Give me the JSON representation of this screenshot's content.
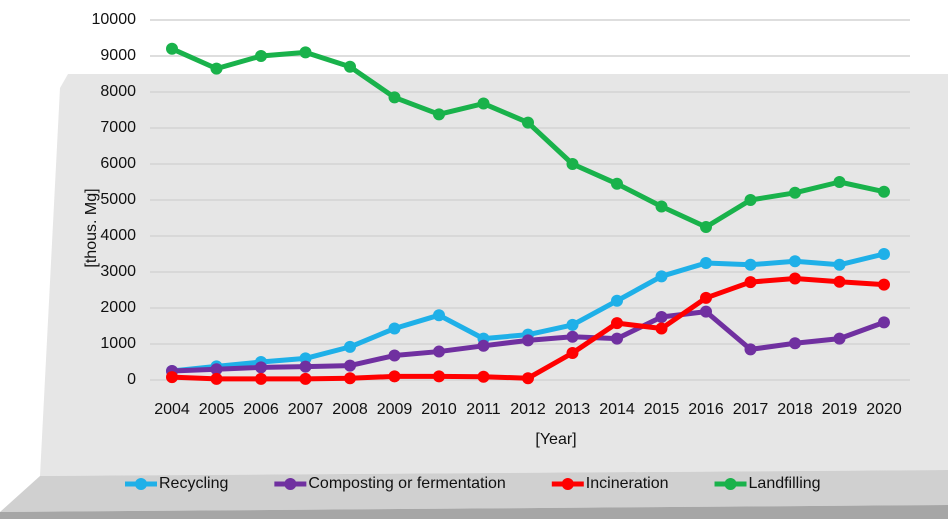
{
  "chart_data": {
    "type": "line",
    "categories": [
      "2004",
      "2005",
      "2006",
      "2007",
      "2008",
      "2009",
      "2010",
      "2011",
      "2012",
      "2013",
      "2014",
      "2015",
      "2016",
      "2017",
      "2018",
      "2019",
      "2020"
    ],
    "x_label": "[Year]",
    "y_label": "[thous. Mg]",
    "ylim": [
      0,
      10000
    ],
    "yticks": [
      0,
      1000,
      2000,
      3000,
      4000,
      5000,
      6000,
      7000,
      8000,
      9000,
      10000
    ],
    "grid": true,
    "legend": "bottom",
    "series": [
      {
        "name": "Recycling",
        "color": "#1fb0e8",
        "values": [
          250,
          380,
          500,
          600,
          920,
          1430,
          1800,
          1150,
          1260,
          1530,
          2200,
          2880,
          3250,
          3200,
          3300,
          3200,
          3500
        ]
      },
      {
        "name": "Composting or fermentation",
        "color": "#7030a0",
        "values": [
          250,
          300,
          350,
          370,
          400,
          680,
          790,
          950,
          1100,
          1200,
          1150,
          1750,
          1900,
          850,
          1020,
          1150,
          1600
        ]
      },
      {
        "name": "Incineration",
        "color": "#ff0000",
        "values": [
          80,
          30,
          30,
          30,
          50,
          100,
          100,
          90,
          50,
          750,
          1580,
          1430,
          2280,
          2720,
          2820,
          2730,
          2650
        ]
      },
      {
        "name": "Landfilling",
        "color": "#19b24b",
        "values": [
          9200,
          8650,
          9000,
          9100,
          8700,
          7850,
          7380,
          7680,
          7150,
          6000,
          5450,
          4820,
          4250,
          5000,
          5200,
          5500,
          5230
        ]
      }
    ]
  }
}
